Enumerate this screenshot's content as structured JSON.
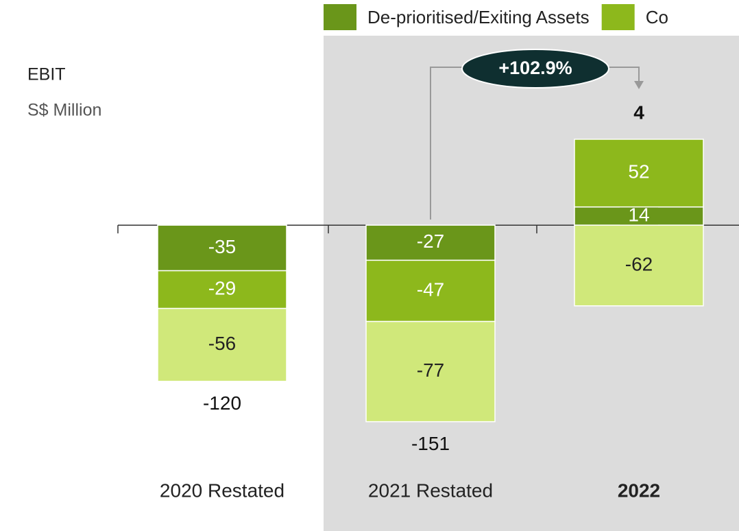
{
  "chart_data": {
    "type": "stacked_bar",
    "axis_title": "EBIT",
    "unit_label": "S$ Million",
    "categories": [
      "2020 Restated",
      "2021 Restated",
      "2022"
    ],
    "series": [
      {
        "name": "De-prioritised/Exiting Assets",
        "color": "#6a961a",
        "values": [
          -35,
          -27,
          14
        ]
      },
      {
        "name": "Co",
        "color": "#8db81c",
        "values": [
          -29,
          -47,
          52
        ]
      },
      {
        "color": "#d0e87a",
        "values": [
          -56,
          -77,
          -62
        ]
      }
    ],
    "totals": [
      -120,
      -151,
      4
    ],
    "annotation": "+102.9%",
    "ylim": [
      -235,
      173
    ]
  }
}
